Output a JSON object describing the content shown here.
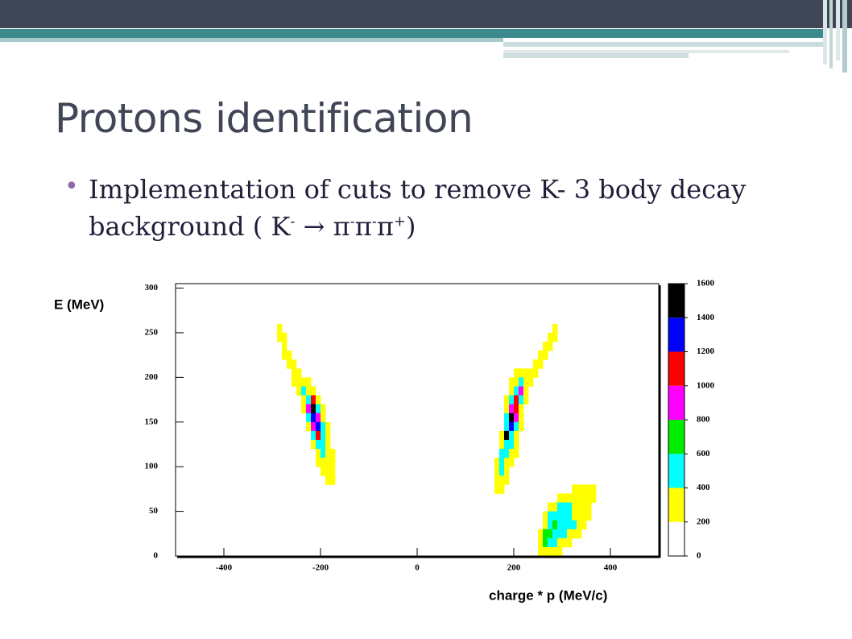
{
  "slide": {
    "title": "Protons identification",
    "bullet": [
      "Implementation of cuts to remove K- 3 body decay background ( K",
      "-",
      " → π",
      "-",
      "π",
      "-",
      "π",
      "+",
      ")"
    ]
  },
  "chart_data": {
    "type": "heatmap",
    "ylabel": "E (MeV)",
    "xlabel": "charge * p (MeV/c)",
    "xlim": [
      -500,
      500
    ],
    "xticks": [
      -400,
      -200,
      0,
      200,
      400
    ],
    "ylim": [
      0,
      305
    ],
    "yticks": [
      0,
      50,
      100,
      150,
      200,
      250,
      300
    ],
    "colorbar": {
      "ticks": [
        0,
        200,
        400,
        600,
        800,
        1000,
        1200,
        1400,
        1600
      ],
      "colors": [
        "#ffffff",
        "#ffff00",
        "#00ffff",
        "#00ee00",
        "#ff00ff",
        "#ff0000",
        "#0000ff",
        "#000000"
      ]
    },
    "rows": [
      {
        "y": [
          250,
          260
        ],
        "x": [
          -290,
          -280
        ],
        "z": [
          300
        ]
      },
      {
        "y": [
          240,
          250
        ],
        "x": [
          -290,
          -270
        ],
        "z": [
          300,
          300
        ]
      },
      {
        "y": [
          230,
          240
        ],
        "x": [
          -280,
          -270
        ],
        "z": [
          300
        ]
      },
      {
        "y": [
          220,
          230
        ],
        "x": [
          -280,
          -260
        ],
        "z": [
          300,
          300
        ]
      },
      {
        "y": [
          210,
          220
        ],
        "x": [
          -270,
          -250
        ],
        "z": [
          300,
          300
        ]
      },
      {
        "y": [
          200,
          210
        ],
        "x": [
          -260,
          -240
        ],
        "z": [
          300,
          300
        ]
      },
      {
        "y": [
          190,
          200
        ],
        "x": [
          -260,
          -220
        ],
        "z": [
          300,
          300,
          300,
          300
        ]
      },
      {
        "y": [
          180,
          190
        ],
        "x": [
          -250,
          -210
        ],
        "z": [
          300,
          500,
          300,
          300
        ]
      },
      {
        "y": [
          170,
          180
        ],
        "x": [
          -240,
          -200
        ],
        "z": [
          300,
          500,
          1100,
          300
        ]
      },
      {
        "y": [
          160,
          170
        ],
        "x": [
          -240,
          -190
        ],
        "z": [
          300,
          900,
          1500,
          500,
          300
        ]
      },
      {
        "y": [
          150,
          160
        ],
        "x": [
          -230,
          -190
        ],
        "z": [
          500,
          1300,
          900,
          300
        ]
      },
      {
        "y": [
          140,
          150
        ],
        "x": [
          -230,
          -180
        ],
        "z": [
          300,
          900,
          1300,
          500,
          300
        ]
      },
      {
        "y": [
          130,
          140
        ],
        "x": [
          -220,
          -180
        ],
        "z": [
          500,
          1100,
          500,
          300
        ]
      },
      {
        "y": [
          120,
          130
        ],
        "x": [
          -220,
          -180
        ],
        "z": [
          300,
          500,
          500,
          300
        ]
      },
      {
        "y": [
          110,
          120
        ],
        "x": [
          -210,
          -170
        ],
        "z": [
          300,
          500,
          300,
          300
        ]
      },
      {
        "y": [
          100,
          110
        ],
        "x": [
          -210,
          -170
        ],
        "z": [
          300,
          300,
          300,
          300
        ]
      },
      {
        "y": [
          90,
          100
        ],
        "x": [
          -200,
          -170
        ],
        "z": [
          300,
          300,
          300
        ]
      },
      {
        "y": [
          80,
          90
        ],
        "x": [
          -190,
          -170
        ],
        "z": [
          300,
          300
        ]
      },
      {
        "y": [
          250,
          260
        ],
        "x": [
          280,
          290
        ],
        "z": [
          300
        ]
      },
      {
        "y": [
          240,
          250
        ],
        "x": [
          270,
          290
        ],
        "z": [
          300,
          300
        ]
      },
      {
        "y": [
          230,
          240
        ],
        "x": [
          260,
          280
        ],
        "z": [
          300,
          300
        ]
      },
      {
        "y": [
          220,
          230
        ],
        "x": [
          250,
          270
        ],
        "z": [
          300,
          300
        ]
      },
      {
        "y": [
          210,
          220
        ],
        "x": [
          240,
          260
        ],
        "z": [
          300,
          300
        ]
      },
      {
        "y": [
          200,
          210
        ],
        "x": [
          200,
          250
        ],
        "z": [
          300,
          300,
          300,
          300,
          300
        ]
      },
      {
        "y": [
          190,
          200
        ],
        "x": [
          190,
          240
        ],
        "z": [
          300,
          300,
          500,
          300,
          300
        ]
      },
      {
        "y": [
          180,
          190
        ],
        "x": [
          190,
          230
        ],
        "z": [
          300,
          500,
          900,
          300
        ]
      },
      {
        "y": [
          170,
          180
        ],
        "x": [
          180,
          230
        ],
        "z": [
          300,
          500,
          1100,
          500,
          300
        ]
      },
      {
        "y": [
          160,
          170
        ],
        "x": [
          180,
          220
        ],
        "z": [
          300,
          900,
          1100,
          300
        ]
      },
      {
        "y": [
          150,
          160
        ],
        "x": [
          180,
          220
        ],
        "z": [
          500,
          1500,
          900,
          300
        ]
      },
      {
        "y": [
          140,
          150
        ],
        "x": [
          180,
          220
        ],
        "z": [
          500,
          1300,
          500,
          300
        ]
      },
      {
        "y": [
          130,
          140
        ],
        "x": [
          170,
          210
        ],
        "z": [
          300,
          1500,
          500,
          300
        ]
      },
      {
        "y": [
          120,
          130
        ],
        "x": [
          170,
          210
        ],
        "z": [
          300,
          500,
          500,
          300
        ]
      },
      {
        "y": [
          110,
          120
        ],
        "x": [
          170,
          210
        ],
        "z": [
          500,
          500,
          300,
          300
        ]
      },
      {
        "y": [
          100,
          110
        ],
        "x": [
          160,
          200
        ],
        "z": [
          300,
          500,
          300,
          300
        ]
      },
      {
        "y": [
          90,
          100
        ],
        "x": [
          160,
          190
        ],
        "z": [
          300,
          500,
          300
        ]
      },
      {
        "y": [
          80,
          90
        ],
        "x": [
          160,
          190
        ],
        "z": [
          300,
          300,
          300
        ]
      },
      {
        "y": [
          70,
          80
        ],
        "x": [
          160,
          180
        ],
        "z": [
          300,
          300
        ]
      },
      {
        "y": [
          70,
          80
        ],
        "x": [
          320,
          370
        ],
        "z": [
          300,
          300,
          300,
          300,
          300
        ]
      },
      {
        "y": [
          60,
          70
        ],
        "x": [
          290,
          370
        ],
        "z": [
          300,
          300,
          300,
          300,
          300,
          300,
          300,
          300
        ]
      },
      {
        "y": [
          50,
          60
        ],
        "x": [
          270,
          360
        ],
        "z": [
          300,
          300,
          500,
          500,
          500,
          300,
          300,
          300,
          300
        ]
      },
      {
        "y": [
          40,
          50
        ],
        "x": [
          260,
          360
        ],
        "z": [
          300,
          500,
          500,
          500,
          500,
          500,
          300,
          300,
          300,
          300
        ]
      },
      {
        "y": [
          30,
          40
        ],
        "x": [
          260,
          350
        ],
        "z": [
          300,
          500,
          700,
          500,
          500,
          500,
          500,
          300,
          300
        ]
      },
      {
        "y": [
          20,
          30
        ],
        "x": [
          250,
          340
        ],
        "z": [
          300,
          700,
          700,
          500,
          500,
          500,
          300,
          300,
          300
        ]
      },
      {
        "y": [
          10,
          20
        ],
        "x": [
          250,
          320
        ],
        "z": [
          300,
          700,
          500,
          500,
          300,
          300,
          300
        ]
      },
      {
        "y": [
          0,
          10
        ],
        "x": [
          250,
          300
        ],
        "z": [
          300,
          300,
          300,
          300,
          300
        ]
      }
    ]
  }
}
